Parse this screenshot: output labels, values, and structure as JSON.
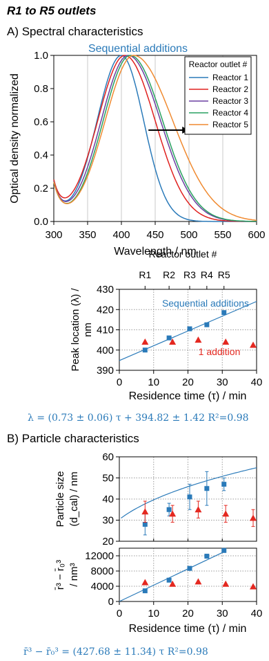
{
  "page_title": "R1 to R5 outlets",
  "section_a": "A) Spectral characteristics",
  "section_b": "B) Particle characteristics",
  "equation_1": "λ = (0.73 ± 0.06) τ + 394.82 ± 1.42    R²=0.98",
  "equation_2": "r̄³ − r̄₀³ = (427.68 ± 11.34) τ      R²=0.98",
  "colors": {
    "reactor_1": "#2a7ab9",
    "reactor_2": "#e0201e",
    "reactor_3": "#6a3fa0",
    "reactor_4": "#28a060",
    "reactor_5": "#f08a30",
    "sequential": "#2a7ab9",
    "single": "#e42820"
  },
  "chart_data": [
    {
      "type": "line",
      "annotation": "Sequential additions",
      "xlabel": "Wavelength / nm",
      "ylabel": "Optical density normalized",
      "xlim": [
        300,
        600
      ],
      "ylim": [
        0,
        1.0
      ],
      "xticks": [
        300,
        350,
        400,
        450,
        500,
        550,
        600
      ],
      "yticks": [
        0.0,
        0.2,
        0.4,
        0.6,
        0.8,
        1.0
      ],
      "grid": "vertical",
      "legend_title": "Reactor outlet #",
      "legend_position": "top-right",
      "arrow": "to the right (red shift)",
      "series": [
        {
          "name": "Reactor 1",
          "peak": 400,
          "sigma_left": 36,
          "sigma_right": 33,
          "min_at_320": 0.08
        },
        {
          "name": "Reactor 2",
          "peak": 405,
          "sigma_left": 40,
          "sigma_right": 45,
          "min_at_320": 0.09
        },
        {
          "name": "Reactor 3",
          "peak": 410,
          "sigma_left": 40,
          "sigma_right": 48,
          "min_at_320": 0.08
        },
        {
          "name": "Reactor 4",
          "peak": 413,
          "sigma_left": 40,
          "sigma_right": 48,
          "min_at_320": 0.08
        },
        {
          "name": "Reactor 5",
          "peak": 418,
          "sigma_left": 42,
          "sigma_right": 58,
          "min_at_320": 0.07
        }
      ]
    },
    {
      "type": "scatter",
      "top_axis_label": "Reactor outlet #",
      "top_ticks": [
        "R1",
        "R2",
        "R3",
        "R4",
        "R5"
      ],
      "xlabel": "Residence time (τ) / min",
      "ylabel": "Peak location (λ) / nm",
      "xlim": [
        0,
        40
      ],
      "ylim": [
        390,
        430
      ],
      "xticks": [
        0,
        10,
        20,
        30,
        40
      ],
      "yticks": [
        390,
        400,
        410,
        420,
        430
      ],
      "grid": "dotted",
      "series": [
        {
          "name": "Sequential additions",
          "marker": "square",
          "x": [
            7.5,
            14.5,
            20.5,
            25.5,
            30.5
          ],
          "y": [
            400,
            406,
            410.5,
            412.5,
            418.5
          ]
        },
        {
          "name": "1 addition",
          "marker": "triangle",
          "x": [
            7.5,
            15.5,
            23,
            31,
            39
          ],
          "y": [
            404,
            404,
            405,
            404,
            402.5
          ]
        }
      ],
      "fit": {
        "slope": 0.73,
        "intercept": 394.82,
        "x_range": [
          0,
          40
        ]
      }
    },
    {
      "type": "scatter",
      "xlabel": "",
      "ylabel": "Particle size (d_cal) / nm",
      "xlim": [
        0,
        40
      ],
      "ylim": [
        20,
        60
      ],
      "yticks": [
        20,
        30,
        40,
        50,
        60
      ],
      "grid": "dotted",
      "series": [
        {
          "name": "Sequential additions",
          "marker": "square",
          "x": [
            7.5,
            14.5,
            20.5,
            25.5,
            30.5
          ],
          "y": [
            28,
            35,
            41,
            45,
            47
          ],
          "err": [
            5,
            3,
            6,
            8,
            3
          ]
        },
        {
          "name": "1 addition",
          "marker": "triangle",
          "x": [
            7.5,
            15.5,
            23,
            31,
            39
          ],
          "y": [
            34,
            33,
            35,
            33,
            31
          ],
          "err": [
            5,
            4,
            4,
            4,
            4
          ]
        }
      ],
      "fit": {
        "model": "cube_root",
        "coefficient": 427.68,
        "r0_cubed": 3500
      }
    },
    {
      "type": "scatter",
      "xlabel": "Residence time (τ) / min",
      "ylabel": "r̄³ − r̄₀³ / nm³",
      "xlim": [
        0,
        40
      ],
      "ylim": [
        0,
        14000
      ],
      "xticks": [
        0,
        10,
        20,
        30,
        40
      ],
      "yticks": [
        0,
        4000,
        8000,
        12000
      ],
      "grid": "dotted",
      "series": [
        {
          "name": "Sequential additions",
          "marker": "square",
          "x": [
            7.5,
            14.5,
            20.5,
            25.5,
            30.5
          ],
          "y": [
            2800,
            5600,
            8700,
            11900,
            13400
          ]
        },
        {
          "name": "1 addition",
          "marker": "triangle",
          "x": [
            7.5,
            15.5,
            23,
            31,
            39
          ],
          "y": [
            5000,
            4600,
            5200,
            4600,
            3900
          ]
        }
      ],
      "fit": {
        "slope": 427.68,
        "intercept": 0,
        "x_range": [
          0,
          31
        ]
      }
    }
  ]
}
